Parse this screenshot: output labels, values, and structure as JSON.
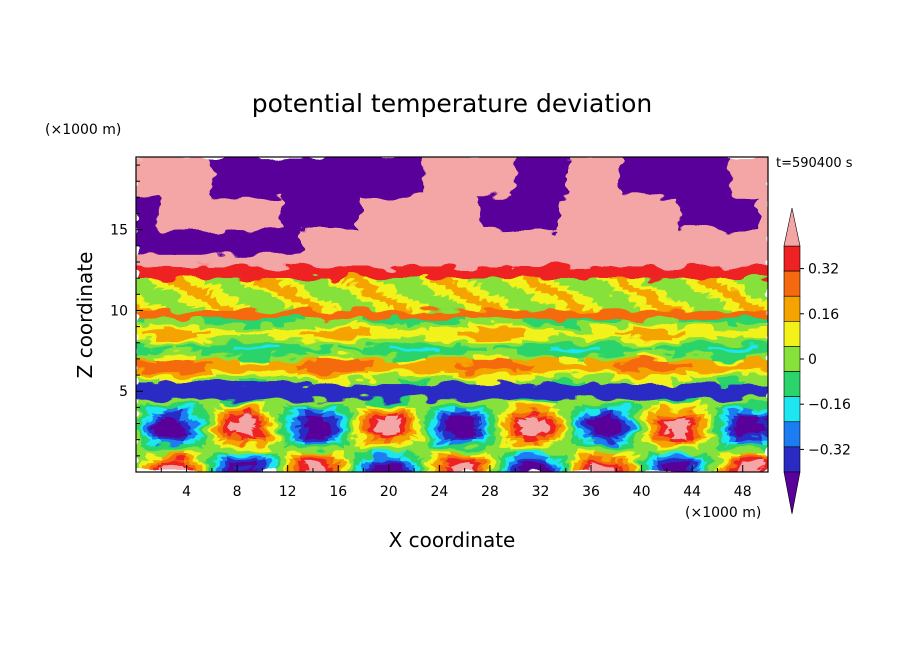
{
  "chart_data": {
    "type": "heatmap",
    "title": "potential temperature deviation",
    "xlabel": "X coordinate",
    "ylabel": "Z coordinate",
    "x_unit": "(×1000 m)",
    "y_unit": "(×1000 m)",
    "time_label": "t=590400 s",
    "xlim": [
      0,
      50
    ],
    "ylim": [
      0,
      19.5
    ],
    "x_ticks": [
      4,
      8,
      12,
      16,
      20,
      24,
      28,
      32,
      36,
      40,
      44,
      48
    ],
    "y_ticks": [
      5,
      10,
      15
    ],
    "colorbar": {
      "levels": [
        -0.4,
        -0.32,
        -0.24,
        -0.16,
        -0.08,
        0,
        0.08,
        0.16,
        0.24,
        0.32,
        0.4
      ],
      "labels": [
        "0.32",
        "0.16",
        "0",
        "−0.16",
        "−0.32"
      ],
      "label_values": [
        0.32,
        0.16,
        0,
        -0.16,
        -0.32
      ],
      "colors": [
        "#5a009a",
        "#2b2bc4",
        "#1c7cf2",
        "#1ee6f0",
        "#2bd46a",
        "#86e23a",
        "#f2f21a",
        "#f5a300",
        "#f56a10",
        "#ee2222",
        "#f4a6a6"
      ],
      "extend": "both"
    },
    "layers": [
      {
        "z": [
          17.0,
          19.5
        ],
        "description_value": -0.45
      },
      {
        "z": [
          12.8,
          17.0
        ],
        "description_value": 0.45
      },
      {
        "z": [
          12.0,
          12.8
        ],
        "description_value": 0.3
      },
      {
        "z": [
          10.0,
          12.0
        ],
        "description_value": 0.0
      },
      {
        "z": [
          9.6,
          10.0
        ],
        "description_value": 0.2
      },
      {
        "z": [
          5.5,
          9.6
        ],
        "description_value": 0.0
      },
      {
        "z": [
          4.5,
          5.5
        ],
        "description_value": -0.4
      },
      {
        "z": [
          0,
          4.5
        ],
        "description_value": -0.1
      }
    ]
  }
}
